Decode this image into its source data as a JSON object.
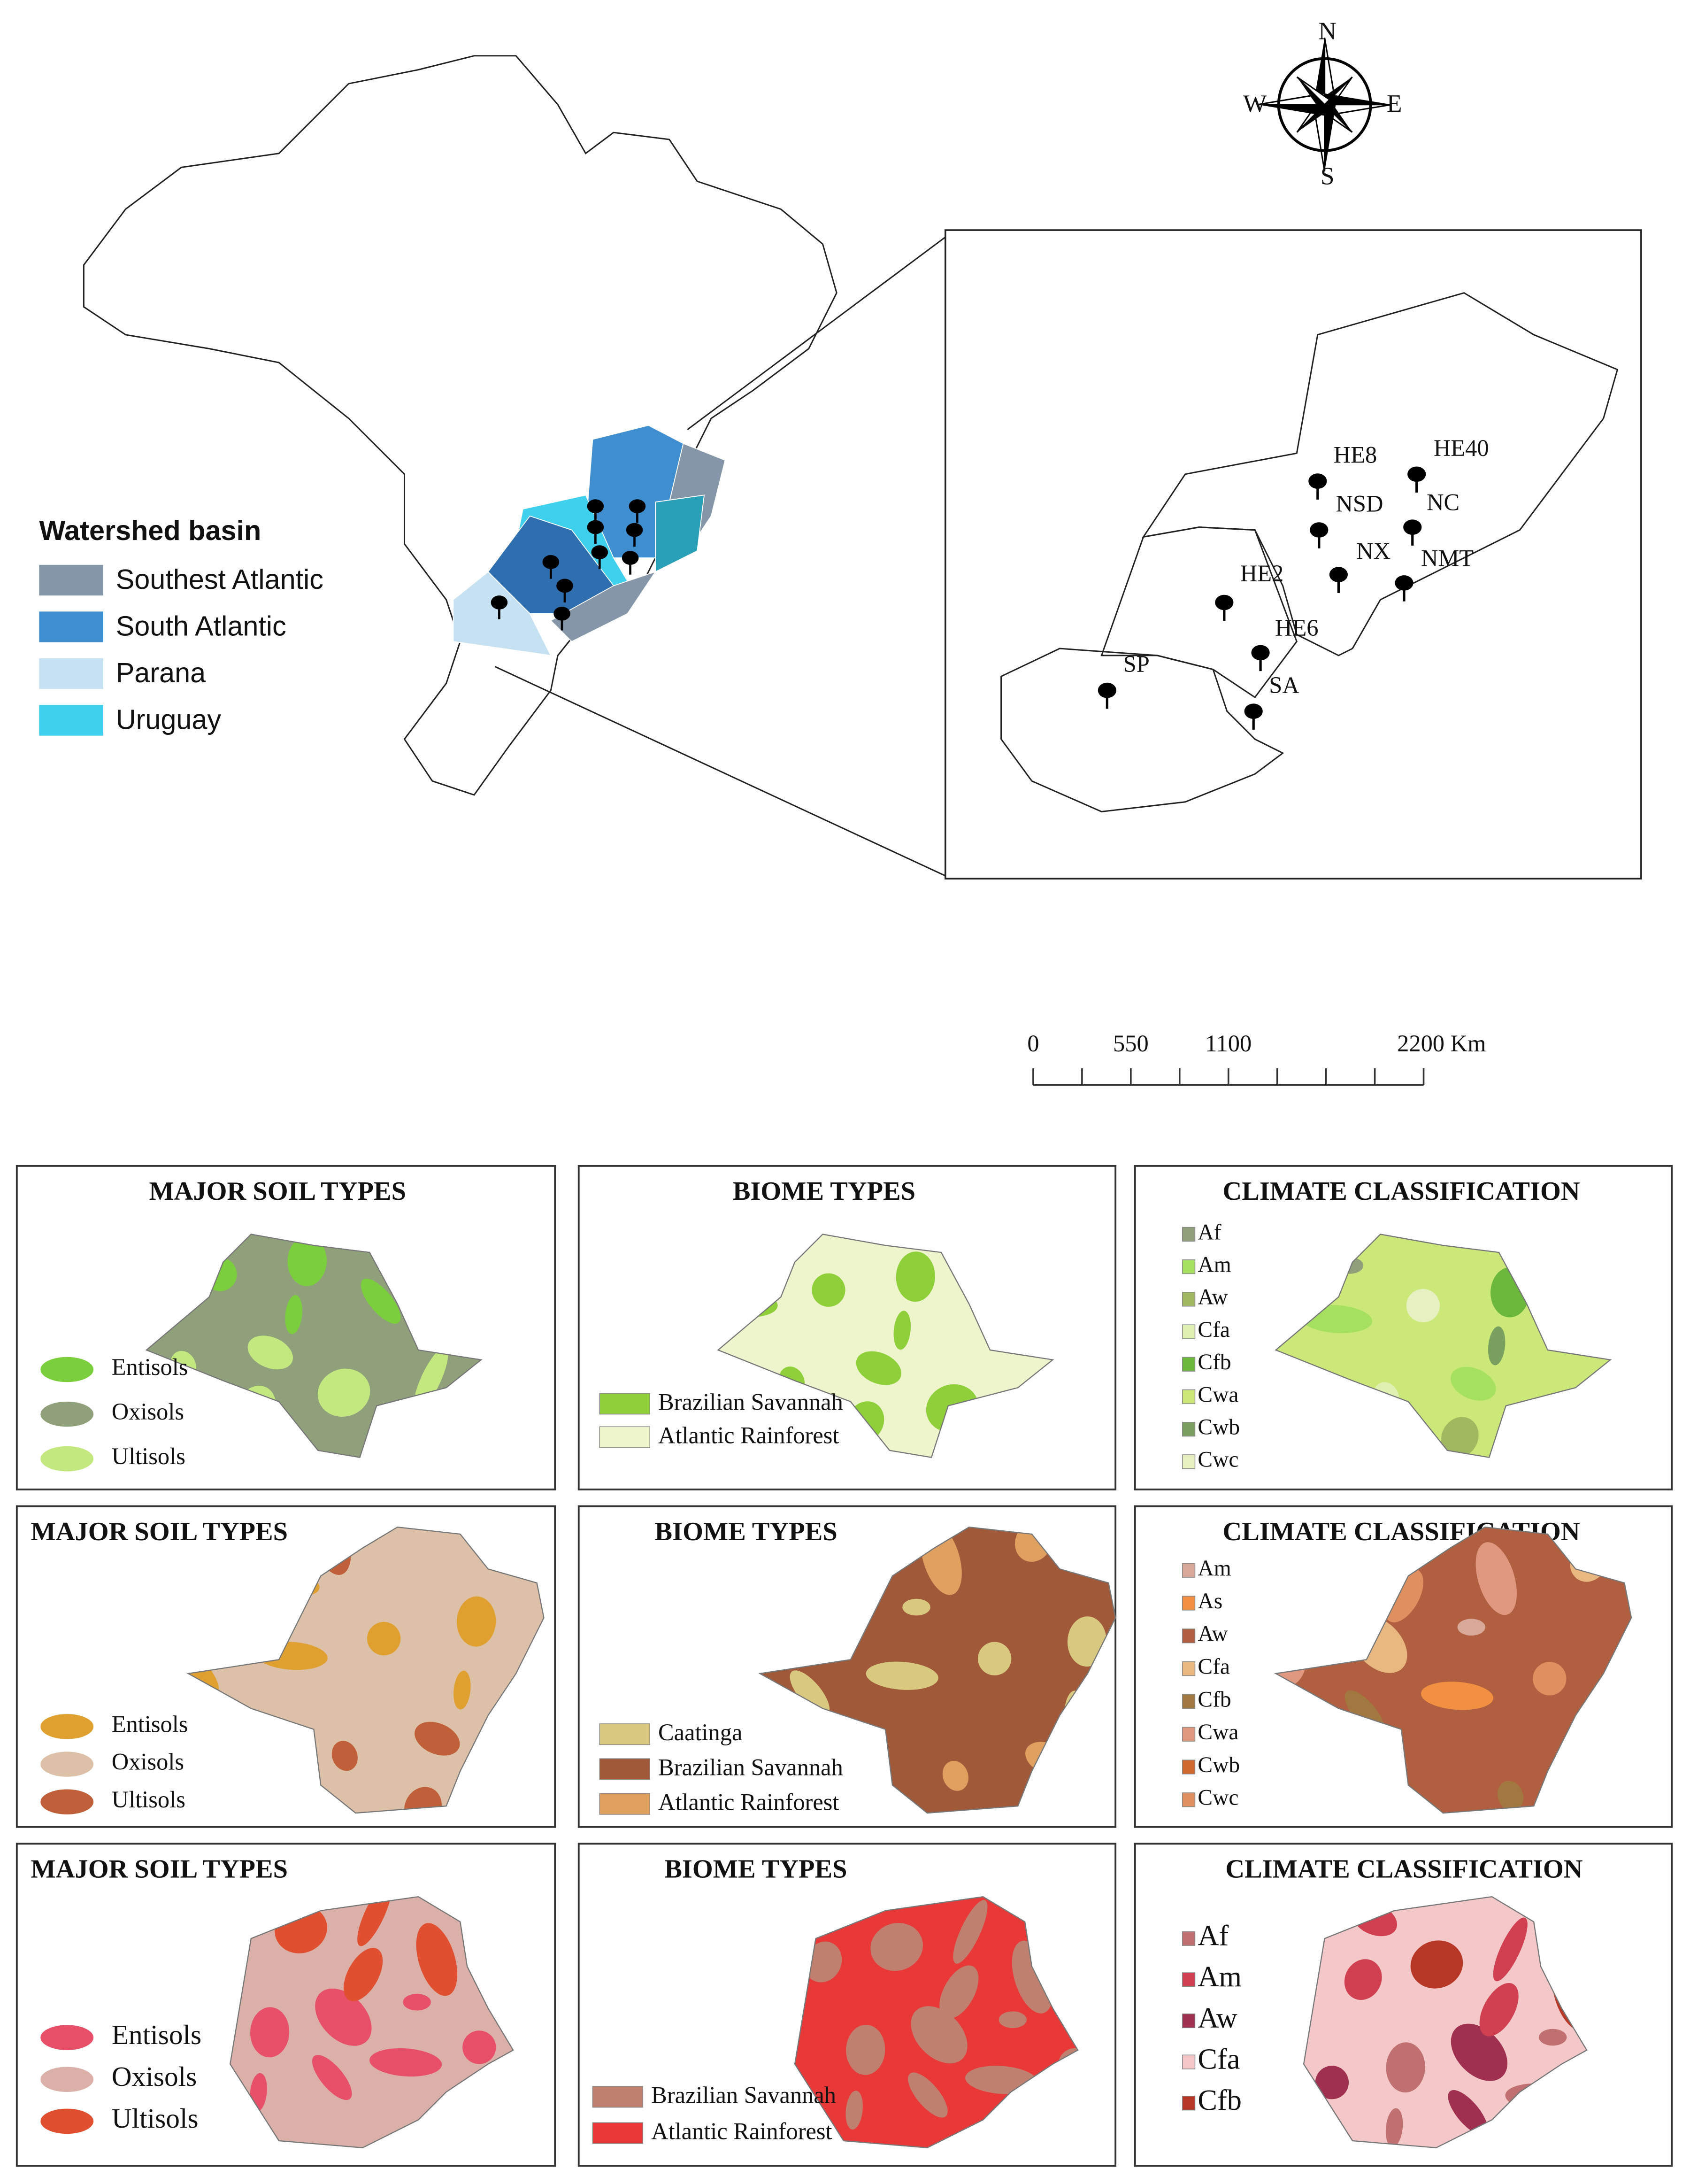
{
  "main_map": {
    "legend": {
      "title": "Watershed basin",
      "items": [
        {
          "label": "Southest Atlantic",
          "color": "#8496a8"
        },
        {
          "label": "South Atlantic",
          "color": "#3f8fd0"
        },
        {
          "label": "Parana",
          "color": "#c6e2f2"
        },
        {
          "label": "Uruguay",
          "color": "#3fd0ee"
        }
      ]
    }
  },
  "compass": {
    "north": "N",
    "south": "S",
    "east": "E",
    "west": "W"
  },
  "inset": {
    "sites": [
      "HE8",
      "HE40",
      "NSD",
      "NC",
      "NX",
      "NMT",
      "HE2",
      "HE6",
      "SP",
      "SA"
    ]
  },
  "scale_bar": {
    "labels": [
      "0",
      "550",
      "1100",
      "2200 Km"
    ]
  },
  "panels": [
    {
      "title": "MAJOR SOIL TYPES",
      "legend": [
        {
          "label": "Entisols",
          "color": "#7ccf3c"
        },
        {
          "label": "Oxisols",
          "color": "#8fa07a"
        },
        {
          "label": "Ultisols",
          "color": "#c4e880"
        }
      ]
    },
    {
      "title": "BIOME TYPES",
      "legend": [
        {
          "label": "Brazilian Savannah",
          "color": "#8fcf3a"
        },
        {
          "label": "Atlantic Rainforest",
          "color": "#eef5cc"
        }
      ]
    },
    {
      "title": "CLIMATE CLASSIFICATION",
      "legend": [
        {
          "label": "Af",
          "color": "#8fa07a"
        },
        {
          "label": "Am",
          "color": "#a6e060"
        },
        {
          "label": "Aw",
          "color": "#a0b860"
        },
        {
          "label": "Cfa",
          "color": "#e0f0b0"
        },
        {
          "label": "Cfb",
          "color": "#6cb83c"
        },
        {
          "label": "Cwa",
          "color": "#cce878"
        },
        {
          "label": "Cwb",
          "color": "#7aa060"
        },
        {
          "label": "Cwc",
          "color": "#e6f0c0"
        }
      ]
    },
    {
      "title": "MAJOR SOIL TYPES",
      "legend": [
        {
          "label": "Entisols",
          "color": "#e0a030"
        },
        {
          "label": "Oxisols",
          "color": "#dcc0a8"
        },
        {
          "label": "Ultisols",
          "color": "#c0603a"
        }
      ]
    },
    {
      "title": "BIOME TYPES",
      "legend": [
        {
          "label": "Caatinga",
          "color": "#d8c880"
        },
        {
          "label": "Brazilian Savannah",
          "color": "#a05a3a"
        },
        {
          "label": "Atlantic Rainforest",
          "color": "#e0a060"
        }
      ]
    },
    {
      "title": "CLIMATE CLASSIFICATION",
      "legend": [
        {
          "label": "Am",
          "color": "#d8a898"
        },
        {
          "label": "As",
          "color": "#f09040"
        },
        {
          "label": "Aw",
          "color": "#b06040"
        },
        {
          "label": "Cfa",
          "color": "#e8b880"
        },
        {
          "label": "Cfb",
          "color": "#a07840"
        },
        {
          "label": "Cwa",
          "color": "#e09880"
        },
        {
          "label": "Cwb",
          "color": "#d06a30"
        },
        {
          "label": "Cwc",
          "color": "#e09060"
        }
      ]
    },
    {
      "title": "MAJOR SOIL TYPES",
      "legend": [
        {
          "label": "Entisols",
          "color": "#e8506a"
        },
        {
          "label": "Oxisols",
          "color": "#dab0a8"
        },
        {
          "label": "Ultisols",
          "color": "#e05030"
        }
      ]
    },
    {
      "title": "BIOME TYPES",
      "legend": [
        {
          "label": "Brazilian Savannah",
          "color": "#c08070"
        },
        {
          "label": "Atlantic Rainforest",
          "color": "#e83838"
        }
      ]
    },
    {
      "title": "CLIMATE CLASSIFICATION",
      "legend": [
        {
          "label": "Af",
          "color": "#c07070"
        },
        {
          "label": "Am",
          "color": "#d04050"
        },
        {
          "label": "Aw",
          "color": "#a03050"
        },
        {
          "label": "Cfa",
          "color": "#f4c8c8"
        },
        {
          "label": "Cfb",
          "color": "#b83828"
        }
      ]
    }
  ]
}
